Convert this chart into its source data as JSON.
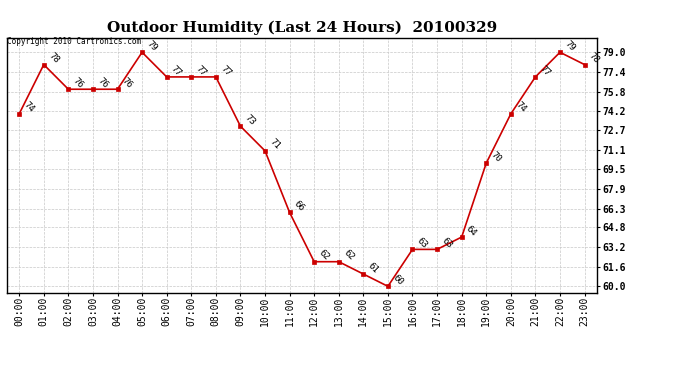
{
  "title": "Outdoor Humidity (Last 24 Hours)  20100329",
  "copyright_text": "Copyright 2010 Cartronics.com",
  "x_labels": [
    "00:00",
    "01:00",
    "02:00",
    "03:00",
    "04:00",
    "05:00",
    "06:00",
    "07:00",
    "08:00",
    "09:00",
    "10:00",
    "11:00",
    "12:00",
    "13:00",
    "14:00",
    "15:00",
    "16:00",
    "17:00",
    "18:00",
    "19:00",
    "20:00",
    "21:00",
    "22:00",
    "23:00"
  ],
  "x_values": [
    0,
    1,
    2,
    3,
    4,
    5,
    6,
    7,
    8,
    9,
    10,
    11,
    12,
    13,
    14,
    15,
    16,
    17,
    18,
    19,
    20,
    21,
    22,
    23
  ],
  "y_values": [
    74,
    78,
    76,
    76,
    76,
    79,
    77,
    77,
    77,
    73,
    71,
    66,
    62,
    62,
    61,
    60,
    63,
    63,
    64,
    70,
    74,
    77,
    79,
    78
  ],
  "point_labels": [
    "74",
    "78",
    "76",
    "76",
    "76",
    "79",
    "77",
    "77",
    "77",
    "73",
    "71",
    "66",
    "62",
    "62",
    "61",
    "60",
    "63",
    "63",
    "64",
    "70",
    "74",
    "77",
    "79",
    "78"
  ],
  "line_color": "#cc0000",
  "marker_color": "#cc0000",
  "bg_color": "#ffffff",
  "grid_color": "#c8c8c8",
  "ylim_min": 59.5,
  "ylim_max": 80.2,
  "yticks": [
    60.0,
    61.6,
    63.2,
    64.8,
    66.3,
    67.9,
    69.5,
    71.1,
    72.7,
    74.2,
    75.8,
    77.4,
    79.0
  ],
  "title_fontsize": 11,
  "label_fontsize": 6.5,
  "tick_fontsize": 7,
  "copyright_fontsize": 5.5,
  "border_color": "#000000"
}
